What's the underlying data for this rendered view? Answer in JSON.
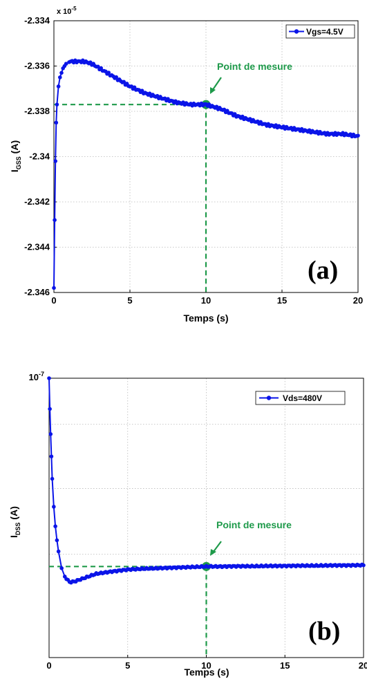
{
  "chart_data": [
    {
      "type": "line",
      "panel_label": "(a)",
      "exponent_label": "x 10",
      "exponent_sup": "-5",
      "xlabel": "Temps (s)",
      "ylabel_main": "I",
      "ylabel_sub": "GSS",
      "ylabel_unit": " (A)",
      "xlim": [
        0,
        20
      ],
      "ylim": [
        -2.346,
        -2.334
      ],
      "x_ticks": [
        "0",
        "5",
        "10",
        "15",
        "20"
      ],
      "y_ticks": [
        "-2.334",
        "-2.336",
        "-2.338",
        "-2.34",
        "-2.342",
        "-2.344",
        "-2.346"
      ],
      "grid": true,
      "legend_position": "top-right",
      "series": [
        {
          "name": "Vgs=4.5V",
          "color": "#0a14e8",
          "x": [
            0,
            0.05,
            0.1,
            0.15,
            0.2,
            0.3,
            0.4,
            0.5,
            0.6,
            0.7,
            0.8,
            1,
            1.2,
            1.5,
            1.8,
            2,
            2.5,
            3,
            4,
            5,
            6,
            7,
            8,
            9,
            10,
            11,
            12,
            13,
            14,
            15,
            16,
            17,
            18,
            19,
            20
          ],
          "y": [
            -2.3458,
            -2.3428,
            -2.3402,
            -2.3385,
            -2.3377,
            -2.3369,
            -2.3365,
            -2.3363,
            -2.3361,
            -2.336,
            -2.3359,
            -2.3358,
            -2.3358,
            -2.3358,
            -2.3358,
            -2.3358,
            -2.3359,
            -2.3361,
            -2.3365,
            -2.3369,
            -2.3372,
            -2.3374,
            -2.3376,
            -2.3377,
            -2.3377,
            -2.3379,
            -2.3382,
            -2.3384,
            -2.3386,
            -2.3387,
            -2.3388,
            -2.3389,
            -2.339,
            -2.339,
            -2.3391
          ]
        }
      ],
      "annotation": {
        "text": "Point de mesure",
        "x": 10,
        "y": -2.3377
      }
    },
    {
      "type": "line",
      "panel_label": "(b)",
      "y_tick_base": "10",
      "y_tick_sup": "-7",
      "xlabel": "Temps (s)",
      "ylabel_main": "I",
      "ylabel_sub": "DSS",
      "ylabel_unit": " (A)",
      "xlim": [
        0,
        20
      ],
      "y_scale": "log",
      "x_ticks": [
        "0",
        "5",
        "10",
        "15",
        "20"
      ],
      "grid": true,
      "legend_position": "top-right",
      "series": [
        {
          "name": "Vds=480V",
          "color": "#0a14e8",
          "x": [
            0,
            0.05,
            0.1,
            0.15,
            0.2,
            0.3,
            0.4,
            0.5,
            0.6,
            0.8,
            1,
            1.3,
            1.6,
            2,
            2.5,
            3,
            4,
            5,
            6,
            7,
            8,
            9,
            10,
            11,
            12,
            13,
            14,
            15,
            16,
            17,
            18,
            19,
            20
          ],
          "level": [
            0,
            0.11,
            0.2,
            0.28,
            0.36,
            0.46,
            0.53,
            0.58,
            0.62,
            0.68,
            0.71,
            0.73,
            0.728,
            0.72,
            0.71,
            0.7,
            0.692,
            0.685,
            0.682,
            0.68,
            0.678,
            0.676,
            0.674,
            0.674,
            0.673,
            0.673,
            0.672,
            0.672,
            0.671,
            0.671,
            0.67,
            0.67,
            0.669
          ]
        }
      ],
      "annotation": {
        "text": "Point de mesure",
        "x": 10,
        "level": 0.674
      }
    }
  ]
}
